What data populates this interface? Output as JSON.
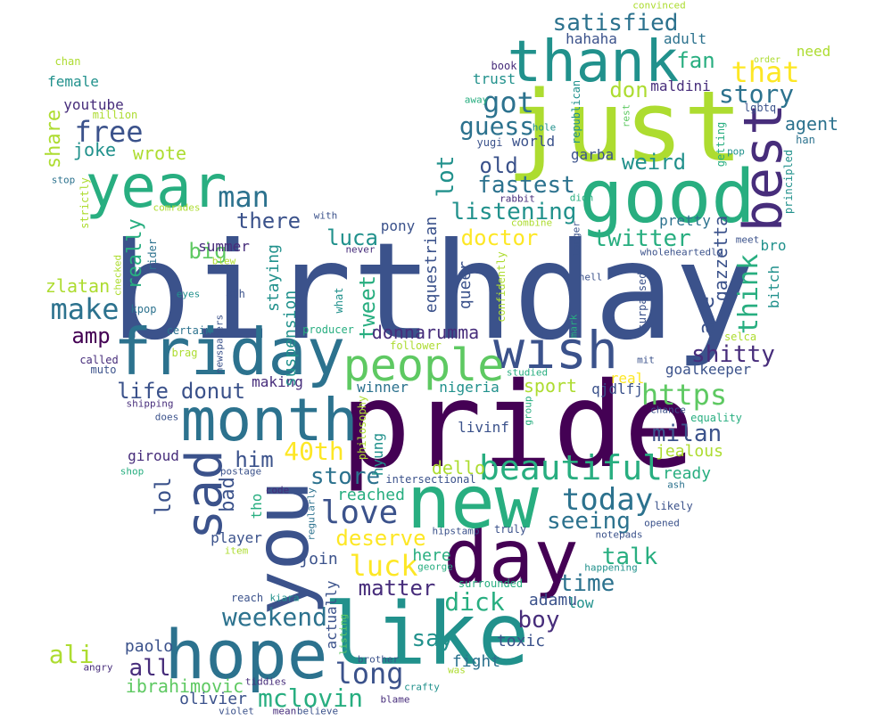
{
  "palette": {
    "p1": "#440154",
    "p2": "#472d7b",
    "p3": "#3b528b",
    "p4": "#2c728e",
    "p5": "#21918c",
    "p6": "#28ae80",
    "p7": "#5ec962",
    "p8": "#addc30",
    "p9": "#fde725"
  },
  "words": [
    {
      "text": "birthday",
      "color": "p3"
    },
    {
      "text": "pride",
      "color": "p1"
    },
    {
      "text": "like",
      "color": "p5"
    },
    {
      "text": "just",
      "color": "p8"
    },
    {
      "text": "you",
      "color": "p3"
    },
    {
      "text": "day",
      "color": "p1"
    },
    {
      "text": "good",
      "color": "p6"
    },
    {
      "text": "new",
      "color": "p6"
    },
    {
      "text": "hope",
      "color": "p4"
    },
    {
      "text": "friday",
      "color": "p4"
    },
    {
      "text": "month",
      "color": "p4"
    },
    {
      "text": "thank",
      "color": "p5"
    },
    {
      "text": "year",
      "color": "p6"
    },
    {
      "text": "sad",
      "color": "p3"
    },
    {
      "text": "best",
      "color": "p2"
    },
    {
      "text": "wish",
      "color": "p3"
    },
    {
      "text": "people",
      "color": "p7"
    },
    {
      "text": "beautiful",
      "color": "p6"
    },
    {
      "text": "love",
      "color": "p3"
    },
    {
      "text": "today",
      "color": "p4"
    },
    {
      "text": "long",
      "color": "p3"
    },
    {
      "text": "make",
      "color": "p4"
    },
    {
      "text": "man",
      "color": "p4"
    },
    {
      "text": "https",
      "color": "p7"
    },
    {
      "text": "luck",
      "color": "p9"
    },
    {
      "text": "mclovin",
      "color": "p6"
    },
    {
      "text": "weekend",
      "color": "p4"
    },
    {
      "text": "dick",
      "color": "p6"
    },
    {
      "text": "got",
      "color": "p4"
    },
    {
      "text": "free",
      "color": "p3"
    },
    {
      "text": "satisfied",
      "color": "p4"
    },
    {
      "text": "that",
      "color": "p9"
    },
    {
      "text": "story",
      "color": "p4"
    },
    {
      "text": "think",
      "color": "p6"
    },
    {
      "text": "guess",
      "color": "p4"
    },
    {
      "text": "fastest",
      "color": "p4"
    },
    {
      "text": "listening",
      "color": "p5"
    },
    {
      "text": "twitter",
      "color": "p6"
    },
    {
      "text": "seeing",
      "color": "p4"
    },
    {
      "text": "milan",
      "color": "p3"
    },
    {
      "text": "40th",
      "color": "p9"
    },
    {
      "text": "boy",
      "color": "p2"
    },
    {
      "text": "time",
      "color": "p4"
    },
    {
      "text": "talk",
      "color": "p6"
    },
    {
      "text": "shitty",
      "color": "p2"
    },
    {
      "text": "matter",
      "color": "p2"
    },
    {
      "text": "deserve",
      "color": "p9"
    },
    {
      "text": "store",
      "color": "p4"
    },
    {
      "text": "ali",
      "color": "p8"
    },
    {
      "text": "all",
      "color": "p2"
    },
    {
      "text": "say",
      "color": "p5"
    },
    {
      "text": "fan",
      "color": "p6"
    },
    {
      "text": "weird",
      "color": "p5"
    },
    {
      "text": "old",
      "color": "p3"
    },
    {
      "text": "doctor",
      "color": "p9"
    },
    {
      "text": "there",
      "color": "p3"
    },
    {
      "text": "big",
      "color": "p7"
    },
    {
      "text": "donut",
      "color": "p3"
    },
    {
      "text": "life",
      "color": "p3"
    },
    {
      "text": "him",
      "color": "p3"
    },
    {
      "text": "amp",
      "color": "p1"
    },
    {
      "text": "luca",
      "color": "p5"
    },
    {
      "text": "lot",
      "color": "p5"
    },
    {
      "text": "don",
      "color": "p8"
    },
    {
      "text": "share",
      "color": "p8"
    },
    {
      "text": "joke",
      "color": "p5"
    },
    {
      "text": "wrote",
      "color": "p8"
    },
    {
      "text": "really",
      "color": "p6"
    },
    {
      "text": "zlatan",
      "color": "p8"
    },
    {
      "text": "tweet",
      "color": "p6"
    },
    {
      "text": "are",
      "color": "p3"
    },
    {
      "text": "gazzetta",
      "color": "p3"
    },
    {
      "text": "agent",
      "color": "p4"
    },
    {
      "text": "lol",
      "color": "p3"
    },
    {
      "text": "bad",
      "color": "p3"
    },
    {
      "text": "ibrahimovic",
      "color": "p7"
    },
    {
      "text": "dello",
      "color": "p8"
    },
    {
      "text": "sport",
      "color": "p8"
    },
    {
      "text": "donnarumma",
      "color": "p2"
    },
    {
      "text": "reached",
      "color": "p6"
    },
    {
      "text": "olivier",
      "color": "p3"
    },
    {
      "text": "paolo",
      "color": "p3"
    },
    {
      "text": "fight",
      "color": "p4"
    },
    {
      "text": "toxic",
      "color": "p3"
    },
    {
      "text": "adamu",
      "color": "p3"
    },
    {
      "text": "goalkeeper",
      "color": "p3"
    },
    {
      "text": "ready",
      "color": "p6"
    },
    {
      "text": "jealous",
      "color": "p8"
    },
    {
      "text": "here",
      "color": "p6"
    },
    {
      "text": "join",
      "color": "p3"
    },
    {
      "text": "low",
      "color": "p5"
    },
    {
      "text": "livinf",
      "color": "p3"
    },
    {
      "text": "making",
      "color": "p2"
    },
    {
      "text": "nigeria",
      "color": "p5"
    },
    {
      "text": "winner",
      "color": "p4"
    },
    {
      "text": "qjdlfj",
      "color": "p3"
    },
    {
      "text": "real",
      "color": "p9"
    },
    {
      "text": "giroud",
      "color": "p2"
    },
    {
      "text": "player",
      "color": "p3"
    },
    {
      "text": "suspension",
      "color": "p5"
    },
    {
      "text": "staying",
      "color": "p5"
    },
    {
      "text": "queer",
      "color": "p3"
    },
    {
      "text": "equestrian",
      "color": "p3"
    },
    {
      "text": "summer",
      "color": "p2"
    },
    {
      "text": "pony",
      "color": "p3"
    },
    {
      "text": "youtube",
      "color": "p2"
    },
    {
      "text": "female",
      "color": "p5"
    },
    {
      "text": "hahaha",
      "color": "p3"
    },
    {
      "text": "maldini",
      "color": "p2"
    },
    {
      "text": "adult",
      "color": "p4"
    },
    {
      "text": "trust",
      "color": "p5"
    },
    {
      "text": "book",
      "color": "p2"
    },
    {
      "text": "world",
      "color": "p3"
    },
    {
      "text": "garba",
      "color": "p3"
    },
    {
      "text": "pretty",
      "color": "p4"
    },
    {
      "text": "bro",
      "color": "p5"
    },
    {
      "text": "bitch",
      "color": "p5"
    },
    {
      "text": "need",
      "color": "p8"
    },
    {
      "text": "order",
      "color": "p8"
    },
    {
      "text": "lgbtq",
      "color": "p3"
    },
    {
      "text": "han",
      "color": "p4"
    },
    {
      "text": "pop",
      "color": "p5"
    },
    {
      "text": "getting",
      "color": "p6"
    },
    {
      "text": "principled",
      "color": "p5"
    },
    {
      "text": "meet",
      "color": "p3"
    },
    {
      "text": "wholeheartedly",
      "color": "p3"
    },
    {
      "text": "selca",
      "color": "p8"
    },
    {
      "text": "mit",
      "color": "p3"
    },
    {
      "text": "chance",
      "color": "p3"
    },
    {
      "text": "equality",
      "color": "p6"
    },
    {
      "text": "ash",
      "color": "p4"
    },
    {
      "text": "likely",
      "color": "p3"
    },
    {
      "text": "opened",
      "color": "p3"
    },
    {
      "text": "notepads",
      "color": "p3"
    },
    {
      "text": "happening",
      "color": "p5"
    },
    {
      "text": "surrounded",
      "color": "p6"
    },
    {
      "text": "truly",
      "color": "p3"
    },
    {
      "text": "hipstamp",
      "color": "p3"
    },
    {
      "text": "george",
      "color": "p6"
    },
    {
      "text": "intersectional",
      "color": "p3"
    },
    {
      "text": "code",
      "color": "p2"
    },
    {
      "text": "regularly",
      "color": "p4"
    },
    {
      "text": "tho",
      "color": "p6"
    },
    {
      "text": "postage",
      "color": "p3"
    },
    {
      "text": "item",
      "color": "p8"
    },
    {
      "text": "shop",
      "color": "p6"
    },
    {
      "text": "shipping",
      "color": "p2"
    },
    {
      "text": "does",
      "color": "p3"
    },
    {
      "text": "certain",
      "color": "p4"
    },
    {
      "text": "called",
      "color": "p2"
    },
    {
      "text": "muto",
      "color": "p3"
    },
    {
      "text": "brag",
      "color": "p8"
    },
    {
      "text": "kpop",
      "color": "p4"
    },
    {
      "text": "eyes",
      "color": "p5"
    },
    {
      "text": "8th",
      "color": "p3"
    },
    {
      "text": "newspapers",
      "color": "p3"
    },
    {
      "text": "what",
      "color": "p5"
    },
    {
      "text": "producer",
      "color": "p6"
    },
    {
      "text": "follower",
      "color": "p8"
    },
    {
      "text": "studied",
      "color": "p6"
    },
    {
      "text": "group",
      "color": "p6"
    },
    {
      "text": "philosophy",
      "color": "p8"
    },
    {
      "text": "hyung",
      "color": "p5"
    },
    {
      "text": "confidently",
      "color": "p8"
    },
    {
      "text": "mark",
      "color": "p6"
    },
    {
      "text": "surpassed",
      "color": "p3"
    },
    {
      "text": "hell",
      "color": "p3"
    },
    {
      "text": "longer",
      "color": "p3"
    },
    {
      "text": "combine",
      "color": "p8"
    },
    {
      "text": "rabbit",
      "color": "p2"
    },
    {
      "text": "didn",
      "color": "p6"
    },
    {
      "text": "hole",
      "color": "p5"
    },
    {
      "text": "rest",
      "color": "p7"
    },
    {
      "text": "republican",
      "color": "p5"
    },
    {
      "text": "yugi",
      "color": "p3"
    },
    {
      "text": "away",
      "color": "p6"
    },
    {
      "text": "convinced",
      "color": "p8"
    },
    {
      "text": "chan",
      "color": "p8"
    },
    {
      "text": "million",
      "color": "p8"
    },
    {
      "text": "stop",
      "color": "p4"
    },
    {
      "text": "strictly",
      "color": "p8"
    },
    {
      "text": "comrades",
      "color": "p8"
    },
    {
      "text": "with",
      "color": "p3"
    },
    {
      "text": "blew",
      "color": "p8"
    },
    {
      "text": "never",
      "color": "p2"
    },
    {
      "text": "rider",
      "color": "p4"
    },
    {
      "text": "checked",
      "color": "p8"
    },
    {
      "text": "angry",
      "color": "p2"
    },
    {
      "text": "tiddies",
      "color": "p2"
    },
    {
      "text": "violet",
      "color": "p3"
    },
    {
      "text": "mean",
      "color": "p2"
    },
    {
      "text": "believe",
      "color": "p3"
    },
    {
      "text": "blame",
      "color": "p2"
    },
    {
      "text": "crafty",
      "color": "p5"
    },
    {
      "text": "brother",
      "color": "p3"
    },
    {
      "text": "was",
      "color": "p8"
    },
    {
      "text": "listing",
      "color": "p7"
    },
    {
      "text": "kiara",
      "color": "p5"
    },
    {
      "text": "reach",
      "color": "p3"
    },
    {
      "text": "actually",
      "color": "p3"
    }
  ]
}
